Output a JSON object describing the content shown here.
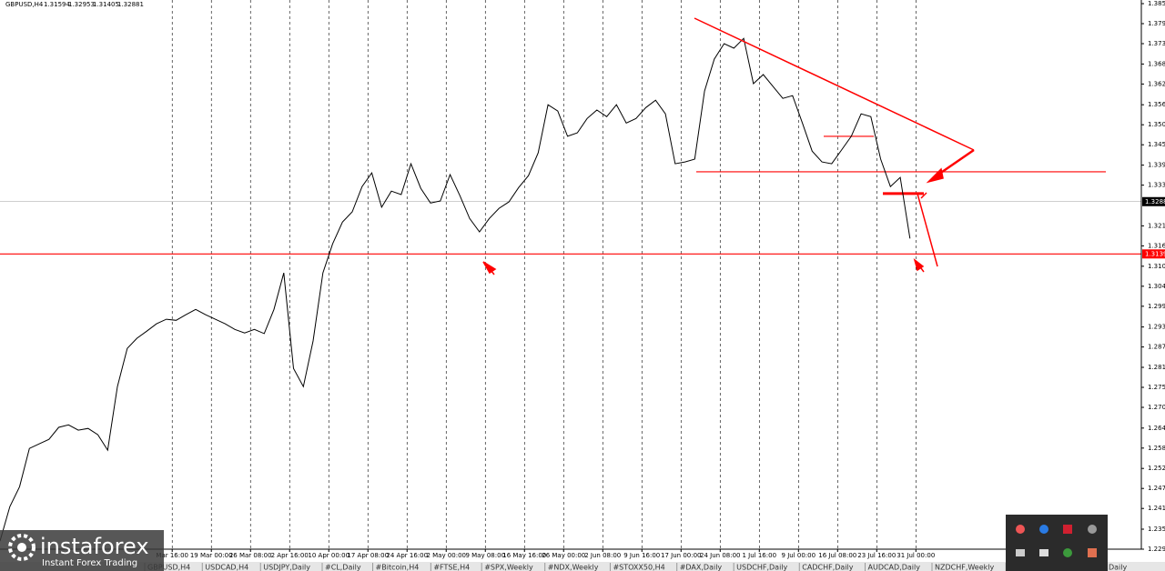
{
  "chart_data": {
    "type": "line",
    "title": "GBPUSD,H4",
    "header_values": [
      1.31594,
      1.32953,
      1.31405,
      1.32881
    ],
    "color": "#000000",
    "xlim": [
      -4.4,
      24.76
    ],
    "ylim": [
      1.2298,
      1.3852
    ],
    "xticks": [
      {
        "value": 0,
        "label": "Mar 16:00"
      },
      {
        "value": 1,
        "label": "19 Mar 00:00"
      },
      {
        "value": 2,
        "label": "26 Mar 08:00"
      },
      {
        "value": 3,
        "label": "2 Apr 16:00"
      },
      {
        "value": 4,
        "label": "10 Apr 00:00"
      },
      {
        "value": 5,
        "label": "17 Apr 08:00"
      },
      {
        "value": 6,
        "label": "24 Apr 16:00"
      },
      {
        "value": 7,
        "label": "2 May 00:00"
      },
      {
        "value": 8,
        "label": "9 May 08:00"
      },
      {
        "value": 9,
        "label": "16 May 16:00"
      },
      {
        "value": 10,
        "label": "26 May 00:00"
      },
      {
        "value": 11,
        "label": "2 Jun 08:00"
      },
      {
        "value": 12,
        "label": "9 Jun 16:00"
      },
      {
        "value": 13,
        "label": "17 Jun 00:00"
      },
      {
        "value": 14,
        "label": "24 Jun 08:00"
      },
      {
        "value": 15,
        "label": "1 Jul 16:00"
      },
      {
        "value": 16,
        "label": "9 Jul 00:00"
      },
      {
        "value": 17,
        "label": "16 Jul 08:00"
      },
      {
        "value": 18,
        "label": "23 Jul 16:00"
      },
      {
        "value": 19,
        "label": "31 Jul 00:00"
      }
    ],
    "yticks": [
      1.3852,
      1.3795,
      1.3738,
      {
        "value": 1.368,
        "label": "1.3680"
      },
      1.3623,
      1.3564,
      1.3507,
      {
        "value": 1.345,
        "label": "1.3450"
      },
      1.3392,
      1.3335,
      1.3219,
      1.3162,
      1.3104,
      1.3047,
      {
        "value": 1.299,
        "label": "1.2990"
      },
      1.2931,
      1.2874,
      1.2816,
      1.2759,
      1.2702,
      1.2643,
      1.2586,
      1.2528,
      1.2471,
      1.2414,
      1.2355,
      1.2298
    ],
    "grid": true,
    "x": [
      -4.4,
      -4.15,
      -3.9,
      -3.65,
      -3.4,
      -3.15,
      -2.9,
      -2.65,
      -2.4,
      -2.15,
      -1.9,
      -1.65,
      -1.4,
      -1.15,
      -0.9,
      -0.65,
      -0.4,
      -0.15,
      0.1,
      0.35,
      0.6,
      0.85,
      1.1,
      1.35,
      1.6,
      1.85,
      2.1,
      2.35,
      2.6,
      2.85,
      3.1,
      3.35,
      3.6,
      3.85,
      4.1,
      4.35,
      4.6,
      4.85,
      5.1,
      5.35,
      5.6,
      5.85,
      6.1,
      6.35,
      6.6,
      6.85,
      7.1,
      7.35,
      7.6,
      7.85,
      8.1,
      8.35,
      8.6,
      8.85,
      9.1,
      9.35,
      9.6,
      9.85,
      10.1,
      10.35,
      10.6,
      10.85,
      11.1,
      11.35,
      11.6,
      11.85,
      12.1,
      12.35,
      12.6,
      12.85,
      13.1,
      13.35,
      13.6,
      13.85,
      14.1,
      14.35,
      14.6,
      14.85,
      15.1,
      15.35,
      15.6,
      15.85,
      16.1,
      16.35,
      16.6,
      16.85,
      17.1,
      17.35,
      17.6,
      17.85,
      18.1,
      18.35,
      18.6,
      18.85
    ],
    "values": [
      1.2321,
      1.2419,
      1.2476,
      1.2585,
      1.2598,
      1.2611,
      1.2645,
      1.2652,
      1.2637,
      1.2642,
      1.2624,
      1.258,
      1.2761,
      1.287,
      1.2899,
      1.2919,
      1.294,
      1.2953,
      1.295,
      1.2966,
      1.2981,
      1.2966,
      1.2953,
      1.294,
      1.2924,
      1.2914,
      1.2924,
      1.2912,
      1.2981,
      1.3085,
      1.2813,
      1.2761,
      1.2891,
      1.3085,
      1.3168,
      1.323,
      1.3259,
      1.3331,
      1.337,
      1.3272,
      1.3318,
      1.3308,
      1.3396,
      1.3326,
      1.3284,
      1.329,
      1.3365,
      1.3305,
      1.324,
      1.3202,
      1.324,
      1.3269,
      1.3287,
      1.3328,
      1.3362,
      1.3427,
      1.3564,
      1.3546,
      1.3474,
      1.3484,
      1.3525,
      1.3549,
      1.353,
      1.3564,
      1.3512,
      1.3525,
      1.3556,
      1.3577,
      1.3538,
      1.3396,
      1.3401,
      1.3409,
      1.3603,
      1.3694,
      1.3738,
      1.3725,
      1.3753,
      1.3624,
      1.365,
      1.3616,
      1.3582,
      1.359,
      1.3512,
      1.3432,
      1.3401,
      1.3396,
      1.3435,
      1.3474,
      1.3538,
      1.353,
      1.3409,
      1.3331,
      1.3357,
      1.3183
    ],
    "price_lines": [
      {
        "value": 1.3288,
        "color": "#9e9e9e",
        "label_color": "#000000"
      },
      {
        "value": 1.3139,
        "color": "#ff0000",
        "label_color": "#ff0000"
      }
    ],
    "levels": [
      1.3373,
      1.3474,
      1.3311
    ]
  },
  "tabs": [
    "GBPUSD,H4",
    "USDCAD,H4",
    "USDJPY,Daily",
    "#CL,Daily",
    "#Bitcoin,H4",
    "#FTSE,H4",
    "#SPX,Weekly",
    "#NDX,Weekly",
    "#STOXX50,H4",
    "#DAX,Daily",
    "USDCHF,Daily",
    "CADCHF,Daily",
    "AUDCAD,Daily",
    "NZDCHF,Weekly",
    "AUDNZD,Daily",
    "EURCAD,Daily"
  ],
  "logo": {
    "name": "instaforex",
    "tagline": "Instant Forex Trading"
  }
}
